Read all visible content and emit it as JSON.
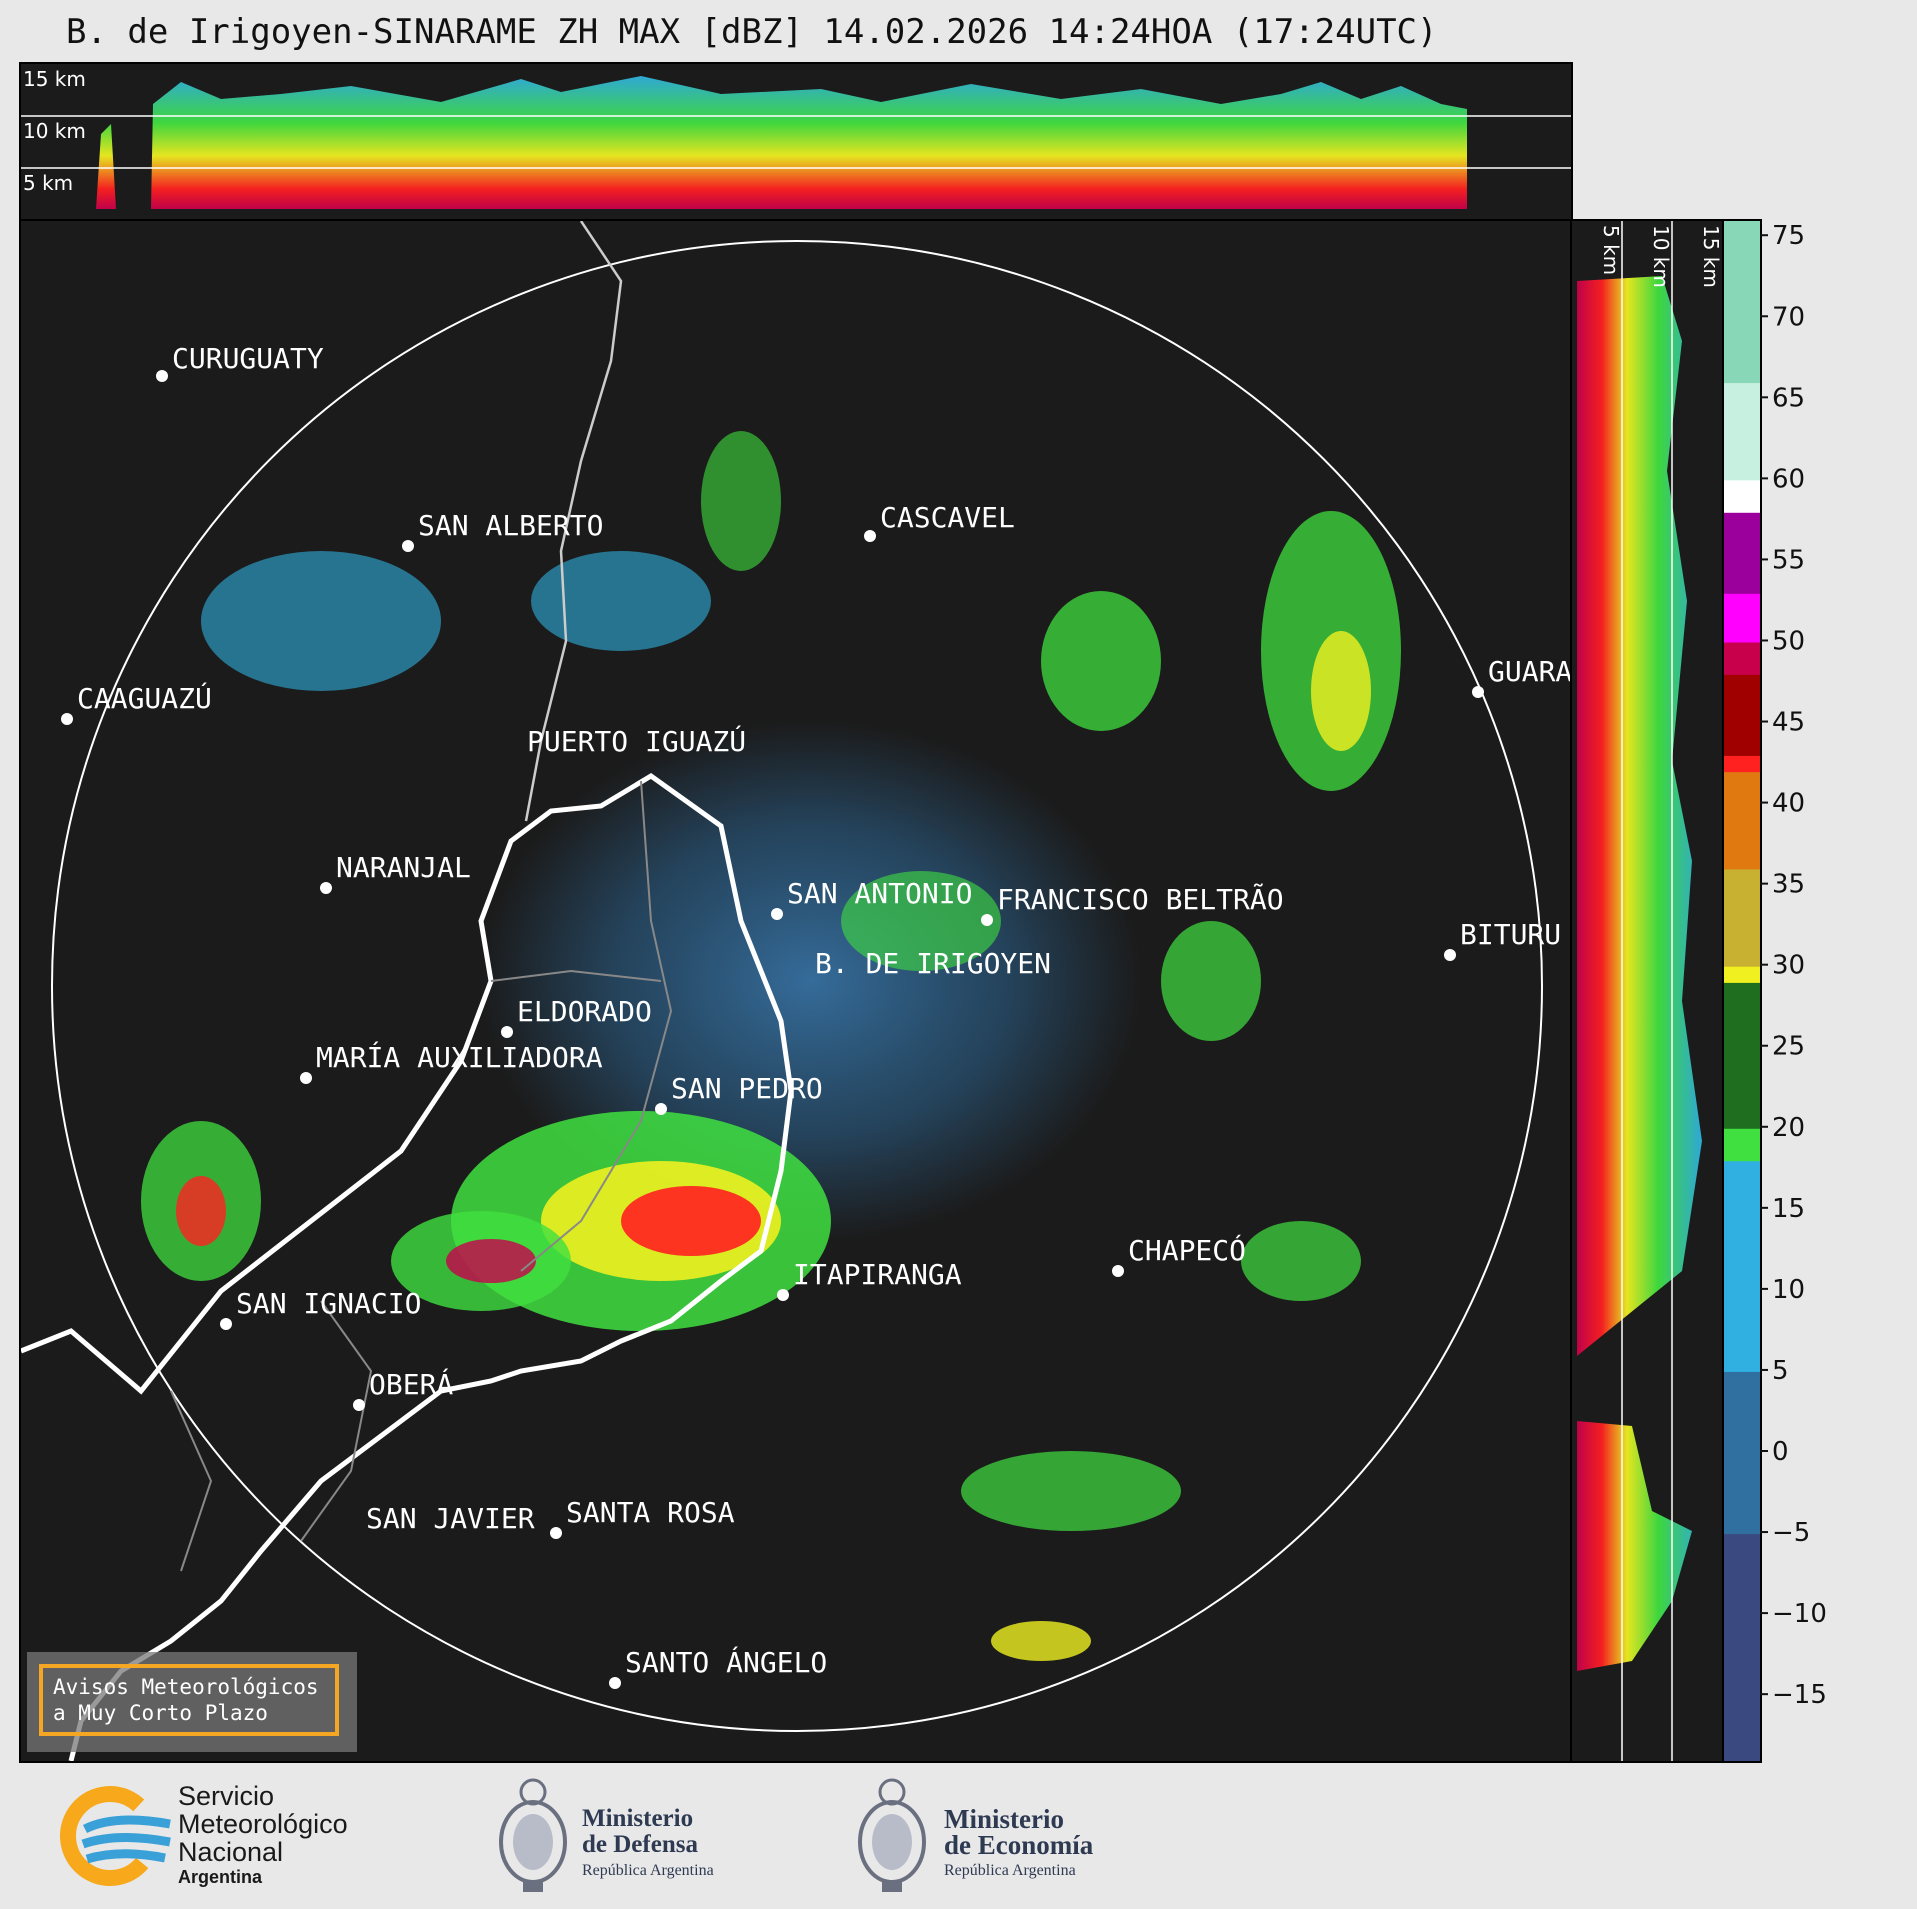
{
  "title": "B. de Irigoyen-SINARAME ZH MAX [dBZ] 14.02.2026 14:24HOA (17:24UTC)",
  "top_panel": {
    "altitude_labels": [
      "15 km",
      "10 km",
      "5 km"
    ]
  },
  "side_panel": {
    "altitude_labels": [
      "5 km",
      "10 km",
      "15 km"
    ]
  },
  "colorbar": {
    "unit": "dBZ",
    "ticks": [
      "75",
      "70",
      "65",
      "60",
      "55",
      "50",
      "45",
      "40",
      "35",
      "30",
      "25",
      "20",
      "15",
      "10",
      "5",
      "0",
      "−5",
      "−10",
      "−15"
    ],
    "stops": [
      {
        "value": 76,
        "color": "#88d8b8"
      },
      {
        "value": 66,
        "color": "#c8f0e0"
      },
      {
        "value": 60,
        "color": "#ffffff"
      },
      {
        "value": 58,
        "color": "#9c009c"
      },
      {
        "value": 53,
        "color": "#ff00ff"
      },
      {
        "value": 50,
        "color": "#c8004c"
      },
      {
        "value": 48,
        "color": "#a00000"
      },
      {
        "value": 43,
        "color": "#ff2020"
      },
      {
        "value": 42,
        "color": "#e07a10"
      },
      {
        "value": 36,
        "color": "#c8b030"
      },
      {
        "value": 30,
        "color": "#f0f020"
      },
      {
        "value": 29,
        "color": "#1f6e1f"
      },
      {
        "value": 20,
        "color": "#40e040"
      },
      {
        "value": 18,
        "color": "#30b0e0"
      },
      {
        "value": 5,
        "color": "#3070a0"
      },
      {
        "value": -5,
        "color": "#3a4a80"
      },
      {
        "value": -19,
        "color": "#3a3a70"
      }
    ]
  },
  "map": {
    "cities": [
      {
        "name": "CURUGUATY"
      },
      {
        "name": "SAN ALBERTO"
      },
      {
        "name": "CASCAVEL"
      },
      {
        "name": "CAAGUAZÚ"
      },
      {
        "name": "GUARA"
      },
      {
        "name": "PUERTO IGUAZÚ"
      },
      {
        "name": "NARANJAL"
      },
      {
        "name": "SAN ANTONIO"
      },
      {
        "name": "FRANCISCO BELTRÃO"
      },
      {
        "name": "BITURU"
      },
      {
        "name": "B. DE IRIGOYEN"
      },
      {
        "name": "ELDORADO"
      },
      {
        "name": "MARÍA AUXILIADORA"
      },
      {
        "name": "SAN PEDRO"
      },
      {
        "name": "CHAPECÓ"
      },
      {
        "name": "ITAPIRANGA"
      },
      {
        "name": "SAN IGNACIO"
      },
      {
        "name": "OBERÁ"
      },
      {
        "name": "SAN JAVIER"
      },
      {
        "name": "SANTA ROSA"
      },
      {
        "name": "SANTO ÁNGELO"
      }
    ]
  },
  "notice": {
    "line1": "Avisos Meteorológicos",
    "line2": "a Muy Corto Plazo"
  },
  "footer": {
    "smn": {
      "line1": "Servicio",
      "line2": "Meteorológico",
      "line3": "Nacional",
      "line4": "Argentina"
    },
    "defensa": {
      "line1": "Ministerio",
      "line2": "de Defensa",
      "line3": "República Argentina"
    },
    "economia": {
      "line1": "Ministerio",
      "line2": "de Economía",
      "line3": "República Argentina"
    }
  }
}
